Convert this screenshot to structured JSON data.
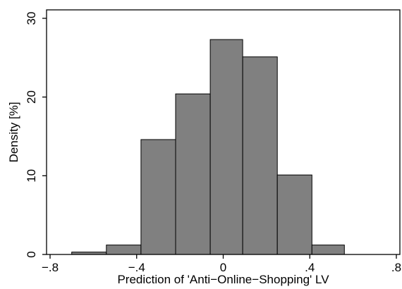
{
  "chart_data": {
    "type": "bar",
    "xlabel": "Prediction of 'Anti−Online−Shopping' LV",
    "ylabel": "Density [%]",
    "xlim": [
      -0.8,
      0.8
    ],
    "ylim": [
      0,
      30
    ],
    "xticks": [
      {
        "value": -0.8,
        "label": "−.8"
      },
      {
        "value": -0.4,
        "label": "−.4"
      },
      {
        "value": 0,
        "label": "0"
      },
      {
        "value": 0.4,
        "label": ".4"
      },
      {
        "value": 0.8,
        "label": ".8"
      }
    ],
    "yticks": [
      {
        "value": 0,
        "label": "0"
      },
      {
        "value": 10,
        "label": "10"
      },
      {
        "value": 20,
        "label": "20"
      },
      {
        "value": 30,
        "label": "30"
      }
    ],
    "bins": [
      {
        "x0": -0.7,
        "x1": -0.54,
        "value": 0.3
      },
      {
        "x0": -0.54,
        "x1": -0.38,
        "value": 1.2
      },
      {
        "x0": -0.38,
        "x1": -0.22,
        "value": 14.6
      },
      {
        "x0": -0.22,
        "x1": -0.06,
        "value": 20.4
      },
      {
        "x0": -0.06,
        "x1": 0.09,
        "value": 27.3
      },
      {
        "x0": 0.09,
        "x1": 0.25,
        "value": 25.1
      },
      {
        "x0": 0.25,
        "x1": 0.41,
        "value": 10.1
      },
      {
        "x0": 0.41,
        "x1": 0.56,
        "value": 1.2
      }
    ],
    "grid": false,
    "legend": "none",
    "colors": {
      "bar_fill": "#808080",
      "bar_stroke": "#000000",
      "axis": "#000000",
      "background": "#ffffff"
    }
  }
}
